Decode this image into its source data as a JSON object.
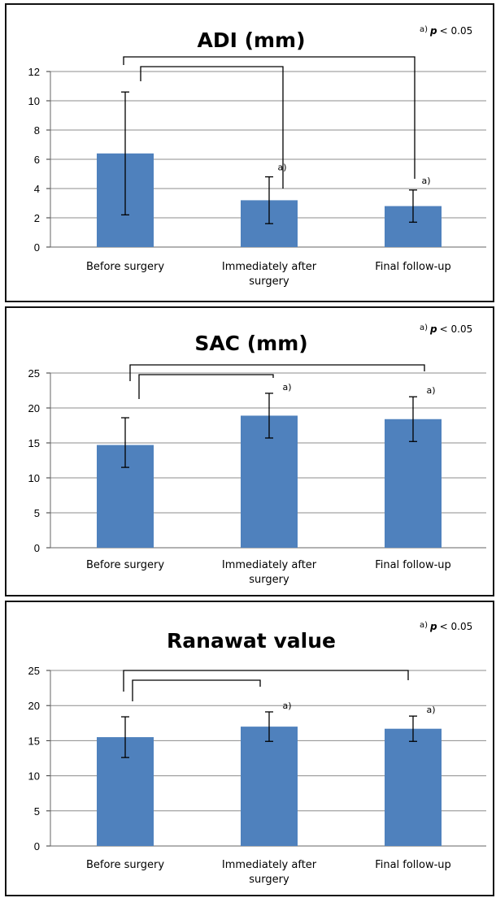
{
  "chart_data": [
    {
      "type": "bar",
      "title": "ADI (mm)",
      "annotation": {
        "prefix": "a)",
        "p_label": "p",
        "rest": "< 0.05"
      },
      "categories": [
        "Before surgery",
        "Immediately after surgery",
        "Final follow-up"
      ],
      "category_lines": [
        [
          "Before surgery"
        ],
        [
          "Immediately after",
          "surgery"
        ],
        [
          "Final follow-up"
        ]
      ],
      "values": [
        6.4,
        3.2,
        2.8
      ],
      "error_low": [
        2.2,
        1.6,
        1.7
      ],
      "error_high": [
        10.6,
        4.8,
        3.9
      ],
      "significance_markers": [
        "",
        "a)",
        "a)"
      ],
      "ylim": [
        0,
        12
      ],
      "yticks": [
        0,
        2,
        4,
        6,
        8,
        10,
        12
      ],
      "grid": true,
      "bar_color": "#4F81BD",
      "xlabel": "",
      "ylabel": ""
    },
    {
      "type": "bar",
      "title": "SAC (mm)",
      "annotation": {
        "prefix": "a)",
        "p_label": "p",
        "rest": "< 0.05"
      },
      "categories": [
        "Before surgery",
        "Immediately after surgery",
        "Final follow-up"
      ],
      "category_lines": [
        [
          "Before surgery"
        ],
        [
          "Immediately after",
          "surgery"
        ],
        [
          "Final follow-up"
        ]
      ],
      "values": [
        14.7,
        18.9,
        18.4
      ],
      "error_low": [
        11.5,
        15.7,
        15.2
      ],
      "error_high": [
        18.6,
        22.1,
        21.6
      ],
      "significance_markers": [
        "",
        "a)",
        "a)"
      ],
      "ylim": [
        0,
        25
      ],
      "yticks": [
        0,
        5,
        10,
        15,
        20,
        25
      ],
      "grid": true,
      "bar_color": "#4F81BD",
      "xlabel": "",
      "ylabel": ""
    },
    {
      "type": "bar",
      "title": "Ranawat value",
      "annotation": {
        "prefix": "a)",
        "p_label": "p",
        "rest": "< 0.05"
      },
      "categories": [
        "Before surgery",
        "Immediately after surgery",
        "Final follow-up"
      ],
      "category_lines": [
        [
          "Before surgery"
        ],
        [
          "Immediately after",
          "surgery"
        ],
        [
          "Final follow-up"
        ]
      ],
      "values": [
        15.5,
        17.0,
        16.7
      ],
      "error_low": [
        12.6,
        14.9,
        14.9
      ],
      "error_high": [
        18.4,
        19.1,
        18.5
      ],
      "significance_markers": [
        "",
        "a)",
        "a)"
      ],
      "ylim": [
        0,
        25
      ],
      "yticks": [
        0,
        5,
        10,
        15,
        20,
        25
      ],
      "grid": true,
      "bar_color": "#4F81BD",
      "xlabel": "",
      "ylabel": ""
    }
  ]
}
